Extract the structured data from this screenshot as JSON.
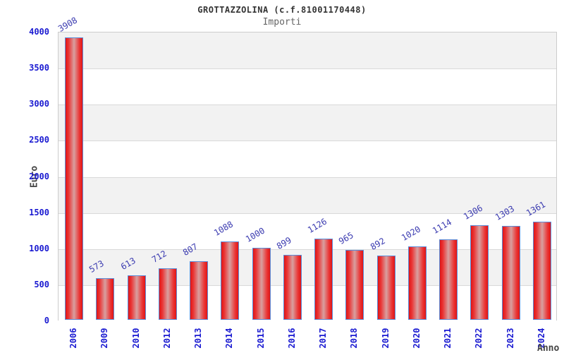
{
  "chart_data": {
    "type": "bar",
    "title": "GROTTAZZOLINA (c.f.81001170448)",
    "subtitle": "Importi",
    "xlabel": "Anno",
    "ylabel": "Euro",
    "categories": [
      "2006",
      "2009",
      "2010",
      "2012",
      "2013",
      "2014",
      "2015",
      "2016",
      "2017",
      "2018",
      "2019",
      "2020",
      "2021",
      "2022",
      "2023",
      "2024"
    ],
    "values": [
      3908,
      573,
      613,
      712,
      807,
      1088,
      1000,
      899,
      1126,
      965,
      892,
      1020,
      1114,
      1306,
      1303,
      1361
    ],
    "ylim": [
      0,
      4000
    ],
    "ytick_step": 500,
    "ytick_labels": [
      "4000",
      "3500",
      "3000",
      "2500",
      "2000",
      "1500",
      "1000",
      "500",
      "0"
    ],
    "legend": false,
    "grid": "horizontal gridlines with alternating shaded bands",
    "colors": {
      "bar_edge_red": "#e01515",
      "bar_mid_red": "#ea3535",
      "bar_center_highlight": "#d8a0a0",
      "bar_border_blue": "#5b8dd9",
      "tick_label_blue": "#1a1ad1",
      "value_label_blue": "#3a3ab0",
      "band_shade": "#f2f2f2",
      "band_plain": "#ffffff",
      "gridline": "#d9d9d9",
      "plot_border": "#cccccc",
      "title_color": "#333333",
      "subtitle_color": "#666666",
      "axis_title_color": "#444444"
    }
  }
}
